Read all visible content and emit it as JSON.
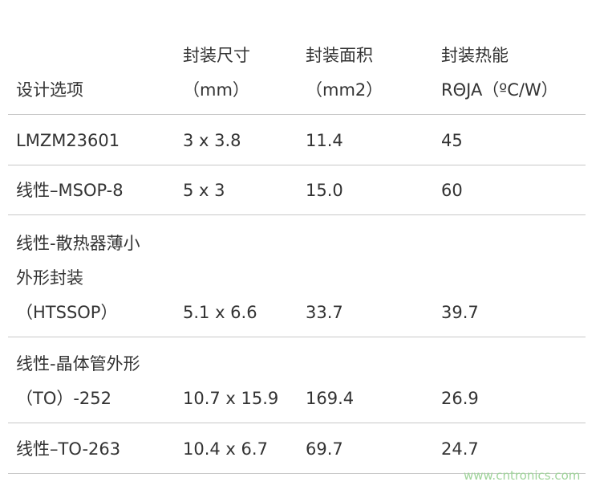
{
  "table": {
    "header": [
      [
        "设计选项"
      ],
      [
        "封装尺寸",
        "（mm）"
      ],
      [
        "封装面积",
        "（mm2）"
      ],
      [
        "封装热能",
        "RΘJA（ºC/W）"
      ]
    ],
    "rows": [
      [
        [
          "LMZM23601"
        ],
        [
          "3 x 3.8"
        ],
        [
          "11.4"
        ],
        [
          "45"
        ]
      ],
      [
        [
          "线性–MSOP-8"
        ],
        [
          "5 x 3"
        ],
        [
          "15.0"
        ],
        [
          "60"
        ]
      ],
      [
        [
          "线性-散热器薄小",
          "外形封装",
          "（HTSSOP）"
        ],
        [
          "5.1 x 6.6"
        ],
        [
          "33.7"
        ],
        [
          "39.7"
        ]
      ],
      [
        [
          "线性-晶体管外形",
          "（TO）-252"
        ],
        [
          "10.7 x 15.9"
        ],
        [
          "169.4"
        ],
        [
          "26.9"
        ]
      ],
      [
        [
          "线性–TO-263"
        ],
        [
          "10.4 x 6.7"
        ],
        [
          "69.7"
        ],
        [
          "24.7"
        ]
      ]
    ]
  },
  "watermark": "www.cntronics.com"
}
